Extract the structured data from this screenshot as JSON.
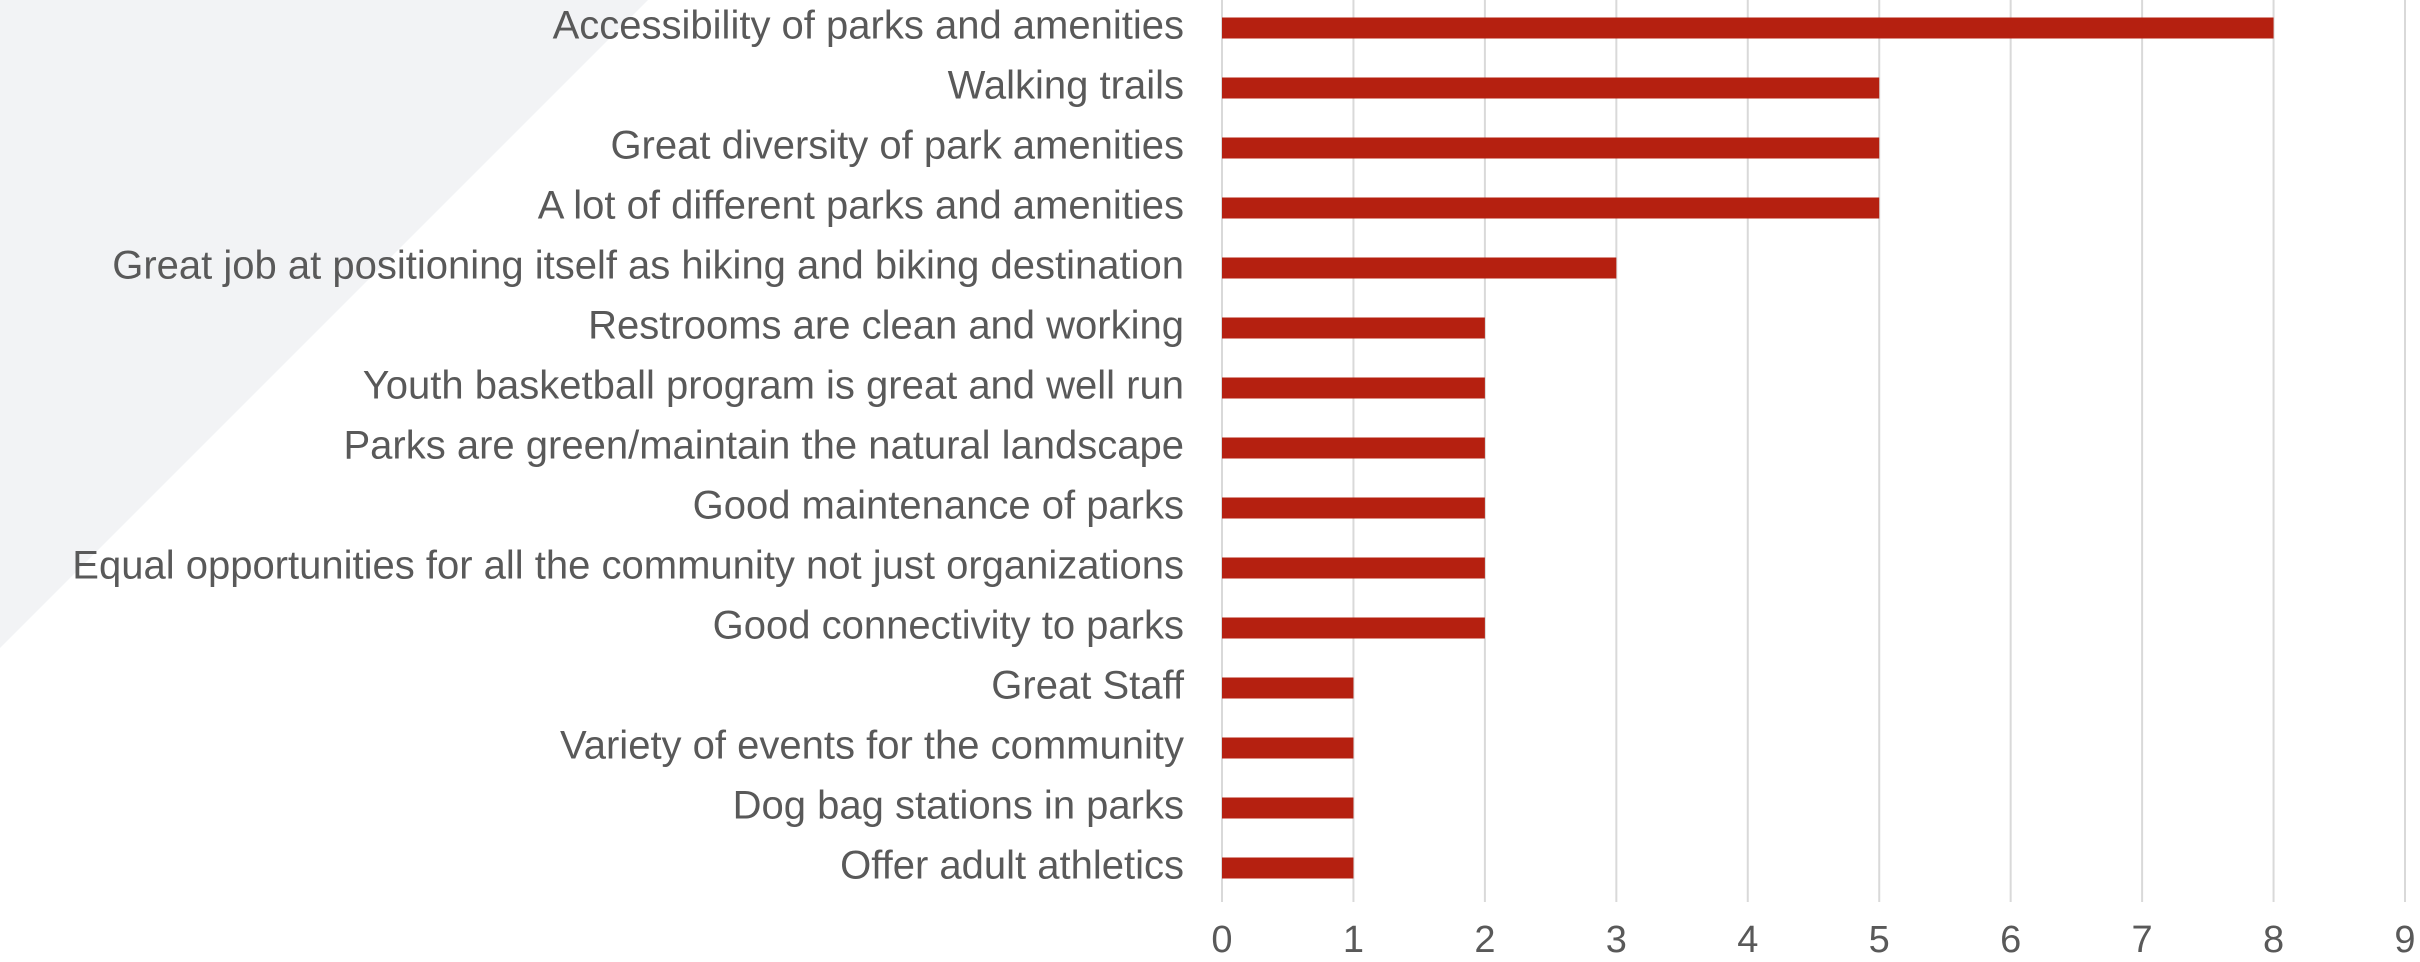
{
  "chart_data": {
    "type": "bar",
    "orientation": "horizontal",
    "categories": [
      "Accessibility of parks and amenities",
      "Walking trails",
      "Great diversity of park amenities",
      "A lot of different parks and amenities",
      "Great job at positioning itself as hiking and biking destination",
      "Restrooms are clean and working",
      "Youth basketball program is great and well run",
      "Parks are green/maintain the natural landscape",
      "Good maintenance of parks",
      "Equal opportunities for all the community not just organizations",
      "Good connectivity to parks",
      "Great Staff",
      "Variety of events for the community",
      "Dog bag stations in parks",
      "Offer adult athletics"
    ],
    "values": [
      8,
      5,
      5,
      5,
      3,
      2,
      2,
      2,
      2,
      2,
      2,
      1,
      1,
      1,
      1
    ],
    "color": "#b52010",
    "xlim": [
      0,
      9
    ],
    "xticks": [
      0,
      1,
      2,
      3,
      4,
      5,
      6,
      7,
      8,
      9
    ],
    "grid": true
  }
}
